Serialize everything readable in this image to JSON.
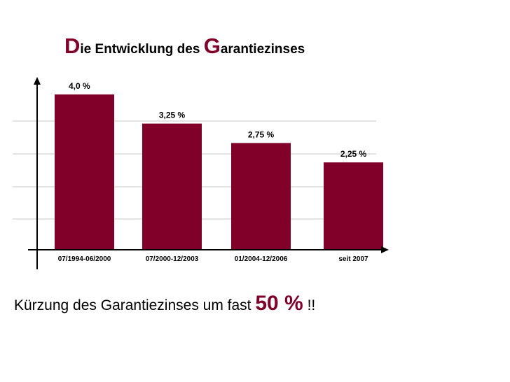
{
  "title": {
    "cap1": "D",
    "part1": "ie Entwicklung des ",
    "cap2": "G",
    "part2": "arantiezinses"
  },
  "chart_data": {
    "type": "bar",
    "title": "Die Entwicklung des Garantiezinses",
    "categories": [
      "07/1994-06/2000",
      "07/2000-12/2003",
      "01/2004-12/2006",
      "seit 2007"
    ],
    "values": [
      4.0,
      3.25,
      2.75,
      2.25
    ],
    "value_labels": [
      "4,0 %",
      "3,25 %",
      "2,75 %",
      "2,25 %"
    ],
    "xlabel": "",
    "ylabel": "",
    "ylim": [
      0,
      4.0
    ],
    "grid": true,
    "bar_color": "#80002a"
  },
  "footer": {
    "text": "Kürzung des Garantiezinses um fast ",
    "emphasis": "50 %",
    "suffix": " !!"
  }
}
